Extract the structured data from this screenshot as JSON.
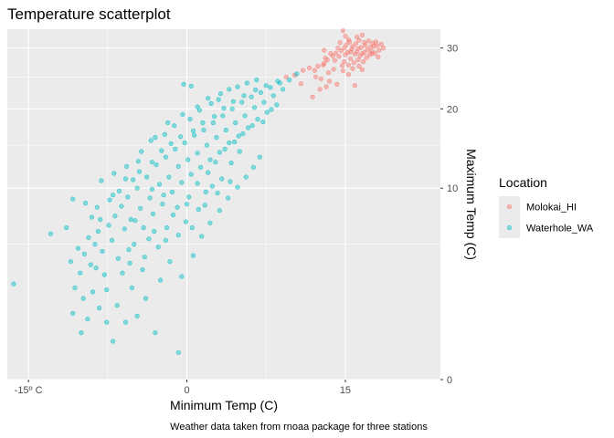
{
  "chart_data": {
    "type": "scatter",
    "title": "Temperature scatterplot",
    "xlabel": "Minimum Temp (C)",
    "ylabel": "Maximum Temp (C)",
    "caption": "Weather data taken from rnoaa package for three stations",
    "x_ticks": [
      {
        "value": -15,
        "label": "-15º C"
      },
      {
        "value": 0,
        "label": "0"
      },
      {
        "value": 15,
        "label": "15"
      }
    ],
    "y_ticks": [
      {
        "value": 0,
        "label": "0"
      },
      {
        "value": 10,
        "label": "10"
      },
      {
        "value": 20,
        "label": "20"
      },
      {
        "value": 30,
        "label": "30"
      }
    ],
    "y_scale": "sqrt",
    "y_axis_position": "right",
    "xlim": [
      -17,
      24
    ],
    "ylim": [
      0,
      33.5
    ],
    "grid": true,
    "legend": {
      "title": "Location",
      "position": "right",
      "entries": [
        {
          "name": "Molokai_HI",
          "color": "#F8766D"
        },
        {
          "name": "Waterhole_WA",
          "color": "#00BFC4"
        }
      ]
    },
    "series": [
      {
        "name": "Molokai_HI",
        "color": "#F8766D",
        "points": [
          [
            9.4,
            25.0
          ],
          [
            10.2,
            25.3
          ],
          [
            11.0,
            26.1
          ],
          [
            12.2,
            25.0
          ],
          [
            11.6,
            26.5
          ],
          [
            12.4,
            26.8
          ],
          [
            13.0,
            27.3
          ],
          [
            13.4,
            25.7
          ],
          [
            13.1,
            28.2
          ],
          [
            13.6,
            29.0
          ],
          [
            13.9,
            26.3
          ],
          [
            14.0,
            27.8
          ],
          [
            14.3,
            30.0
          ],
          [
            14.4,
            28.5
          ],
          [
            14.6,
            29.5
          ],
          [
            14.7,
            26.9
          ],
          [
            14.9,
            27.6
          ],
          [
            15.0,
            28.8
          ],
          [
            15.1,
            30.6
          ],
          [
            15.2,
            29.2
          ],
          [
            15.3,
            27.0
          ],
          [
            15.4,
            31.1
          ],
          [
            15.5,
            28.1
          ],
          [
            15.6,
            29.8
          ],
          [
            15.7,
            30.3
          ],
          [
            15.8,
            27.4
          ],
          [
            15.9,
            28.9
          ],
          [
            16.0,
            30.8
          ],
          [
            16.1,
            29.3
          ],
          [
            16.2,
            27.9
          ],
          [
            16.3,
            31.4
          ],
          [
            16.4,
            28.6
          ],
          [
            16.5,
            30.1
          ],
          [
            16.6,
            29.0
          ],
          [
            16.7,
            27.6
          ],
          [
            16.8,
            31.0
          ],
          [
            16.9,
            30.5
          ],
          [
            17.0,
            28.3
          ],
          [
            17.1,
            29.7
          ],
          [
            17.2,
            31.3
          ],
          [
            17.3,
            28.8
          ],
          [
            17.4,
            30.2
          ],
          [
            17.5,
            29.4
          ],
          [
            17.6,
            30.9
          ],
          [
            17.8,
            29.1
          ],
          [
            18.0,
            30.4
          ],
          [
            18.2,
            29.6
          ],
          [
            18.4,
            30.7
          ],
          [
            18.6,
            30.0
          ],
          [
            12.7,
            24.7
          ],
          [
            13.2,
            23.4
          ],
          [
            13.5,
            24.3
          ],
          [
            11.9,
            21.8
          ],
          [
            12.6,
            23.0
          ],
          [
            14.2,
            23.8
          ],
          [
            14.8,
            26.0
          ],
          [
            15.9,
            23.6
          ],
          [
            10.8,
            23.9
          ],
          [
            15.3,
            25.4
          ],
          [
            16.6,
            26.2
          ],
          [
            15.5,
            29.3
          ],
          [
            16.2,
            29.9
          ],
          [
            16.8,
            29.2
          ],
          [
            17.7,
            30.3
          ],
          [
            14.9,
            30.0
          ],
          [
            14.1,
            29.1
          ],
          [
            13.8,
            28.6
          ],
          [
            13.3,
            27.9
          ],
          [
            12.9,
            27.0
          ],
          [
            12.1,
            26.1
          ],
          [
            13.0,
            29.6
          ],
          [
            14.5,
            31.0
          ],
          [
            15.0,
            32.2
          ],
          [
            14.8,
            33.2
          ],
          [
            15.3,
            31.5
          ],
          [
            16.1,
            32.0
          ],
          [
            16.6,
            32.4
          ],
          [
            17.9,
            31.1
          ],
          [
            17.5,
            29.0
          ],
          [
            18.1,
            28.4
          ],
          [
            16.3,
            26.8
          ],
          [
            15.7,
            26.4
          ]
        ]
      },
      {
        "name": "Waterhole_WA",
        "color": "#00BFC4",
        "points": [
          [
            -16.4,
            2.5
          ],
          [
            -10.8,
            1.2
          ],
          [
            -10.0,
            0.6
          ],
          [
            -9.4,
            1.0
          ],
          [
            -8.9,
            2.1
          ],
          [
            -8.3,
            1.4
          ],
          [
            -7.6,
            0.9
          ],
          [
            -7.0,
            0.4
          ],
          [
            -5.8,
            0.9
          ],
          [
            -4.7,
            1.1
          ],
          [
            -3.0,
            0.6
          ],
          [
            -0.8,
            0.2
          ],
          [
            -10.6,
            2.3
          ],
          [
            -10.1,
            3.1
          ],
          [
            -9.7,
            4.3
          ],
          [
            -9.3,
            5.5
          ],
          [
            -9.1,
            3.6
          ],
          [
            -8.7,
            5.0
          ],
          [
            -8.4,
            6.0
          ],
          [
            -8.0,
            4.5
          ],
          [
            -7.8,
            3.0
          ],
          [
            -7.4,
            6.5
          ],
          [
            -7.1,
            5.3
          ],
          [
            -6.8,
            7.3
          ],
          [
            -6.5,
            4.0
          ],
          [
            -6.2,
            8.2
          ],
          [
            -5.9,
            6.2
          ],
          [
            -5.6,
            9.1
          ],
          [
            -5.3,
            7.0
          ],
          [
            -5.0,
            5.0
          ],
          [
            -4.7,
            10.0
          ],
          [
            -4.4,
            8.0
          ],
          [
            -4.1,
            6.3
          ],
          [
            -3.8,
            11.2
          ],
          [
            -3.5,
            9.0
          ],
          [
            -3.2,
            7.5
          ],
          [
            -2.9,
            12.6
          ],
          [
            -2.6,
            10.4
          ],
          [
            -2.3,
            8.4
          ],
          [
            -2.0,
            13.5
          ],
          [
            -1.7,
            11.2
          ],
          [
            -1.4,
            9.6
          ],
          [
            -1.1,
            14.5
          ],
          [
            -0.8,
            12.4
          ],
          [
            -0.5,
            10.6
          ],
          [
            -0.2,
            15.3
          ],
          [
            0.1,
            13.2
          ],
          [
            0.4,
            11.5
          ],
          [
            0.7,
            16.3
          ],
          [
            1.0,
            14.0
          ],
          [
            1.3,
            12.3
          ],
          [
            1.6,
            17.0
          ],
          [
            1.9,
            15.0
          ],
          [
            2.2,
            13.2
          ],
          [
            2.5,
            18.0
          ],
          [
            2.8,
            16.0
          ],
          [
            3.1,
            14.1
          ],
          [
            3.4,
            19.0
          ],
          [
            3.7,
            17.0
          ],
          [
            4.0,
            15.3
          ],
          [
            4.3,
            20.0
          ],
          [
            4.6,
            18.0
          ],
          [
            4.9,
            16.2
          ],
          [
            5.2,
            21.0
          ],
          [
            5.5,
            19.0
          ],
          [
            5.8,
            17.3
          ],
          [
            6.1,
            21.8
          ],
          [
            6.4,
            20.2
          ],
          [
            6.7,
            18.5
          ],
          [
            7.0,
            22.5
          ],
          [
            7.3,
            21.0
          ],
          [
            7.6,
            19.5
          ],
          [
            7.9,
            23.3
          ],
          [
            8.2,
            22.0
          ],
          [
            8.5,
            20.6
          ],
          [
            8.8,
            24.0
          ],
          [
            9.1,
            23.0
          ],
          [
            9.7,
            24.5
          ],
          [
            10.4,
            25.5
          ],
          [
            -0.3,
            23.8
          ],
          [
            0.4,
            23.5
          ],
          [
            -12.9,
            5.8
          ],
          [
            -11.4,
            6.3
          ],
          [
            -10.8,
            8.9
          ],
          [
            -9.6,
            8.5
          ],
          [
            -8.1,
            10.8
          ],
          [
            -6.9,
            11.6
          ],
          [
            -5.7,
            12.4
          ],
          [
            -4.3,
            14.2
          ],
          [
            -3.4,
            15.6
          ],
          [
            -2.1,
            16.4
          ],
          [
            -1.2,
            17.6
          ],
          [
            0.3,
            18.5
          ],
          [
            1.2,
            19.8
          ],
          [
            2.3,
            20.8
          ],
          [
            3.0,
            21.4
          ],
          [
            -0.5,
            2.9
          ],
          [
            0.6,
            4.2
          ],
          [
            1.4,
            5.6
          ],
          [
            2.2,
            6.7
          ],
          [
            3.1,
            7.8
          ],
          [
            3.9,
            9.0
          ],
          [
            4.8,
            10.1
          ],
          [
            5.6,
            11.2
          ],
          [
            6.3,
            12.3
          ],
          [
            6.9,
            13.5
          ],
          [
            -3.9,
            1.8
          ],
          [
            -2.5,
            2.7
          ],
          [
            -1.6,
            3.8
          ],
          [
            -0.1,
            6.8
          ],
          [
            1.8,
            9.6
          ],
          [
            -7.6,
            2.2
          ],
          [
            -6.1,
            3.1
          ],
          [
            -5.2,
            2.3
          ],
          [
            -4.2,
            3.3
          ],
          [
            -9.8,
            1.8
          ],
          [
            -8.6,
            3.4
          ],
          [
            -6.6,
            1.5
          ],
          [
            -5.4,
            3.7
          ],
          [
            -4.9,
            6.9
          ],
          [
            -3.6,
            5.4
          ],
          [
            -2.7,
            4.8
          ],
          [
            -1.9,
            6.3
          ],
          [
            -0.9,
            8.1
          ],
          [
            0.2,
            9.1
          ],
          [
            1.0,
            10.5
          ],
          [
            2.0,
            11.7
          ],
          [
            2.7,
            12.9
          ],
          [
            3.6,
            14.5
          ],
          [
            4.5,
            15.4
          ],
          [
            5.3,
            16.5
          ],
          [
            6.2,
            17.6
          ],
          [
            7.2,
            18.1
          ],
          [
            8.0,
            19.9
          ],
          [
            -11.0,
            3.8
          ],
          [
            -10.3,
            4.7
          ],
          [
            -9.0,
            7.2
          ],
          [
            -8.5,
            8.1
          ],
          [
            -7.3,
            8.8
          ],
          [
            -6.4,
            9.7
          ],
          [
            -5.1,
            10.9
          ],
          [
            -4.5,
            11.8
          ],
          [
            -3.3,
            12.9
          ],
          [
            -2.4,
            14.3
          ],
          [
            -1.5,
            15.2
          ],
          [
            -0.6,
            16.1
          ],
          [
            0.6,
            16.9
          ],
          [
            1.5,
            18.0
          ],
          [
            2.6,
            18.9
          ],
          [
            3.5,
            20.1
          ],
          [
            4.4,
            21.1
          ],
          [
            5.4,
            22.0
          ],
          [
            6.5,
            22.9
          ],
          [
            7.5,
            23.6
          ],
          [
            8.6,
            24.3
          ],
          [
            -3.3,
            9.9
          ],
          [
            -2.2,
            9.3
          ],
          [
            -1.3,
            7.4
          ],
          [
            0.0,
            8.4
          ],
          [
            1.1,
            7.9
          ],
          [
            2.4,
            10.2
          ],
          [
            3.3,
            11.0
          ],
          [
            4.2,
            12.8
          ],
          [
            5.0,
            14.2
          ],
          [
            -5.5,
            4.6
          ],
          [
            -4.0,
            4.1
          ],
          [
            -3.1,
            6.0
          ],
          [
            -2.0,
            5.3
          ],
          [
            -0.8,
            5.7
          ],
          [
            0.5,
            6.3
          ],
          [
            1.7,
            8.3
          ],
          [
            2.9,
            9.5
          ],
          [
            4.1,
            10.7
          ],
          [
            -8.2,
            7.0
          ],
          [
            -7.0,
            9.3
          ],
          [
            -5.8,
            11.0
          ],
          [
            -4.6,
            13.0
          ],
          [
            -3.0,
            16.0
          ],
          [
            -1.8,
            18.0
          ],
          [
            -0.4,
            19.2
          ],
          [
            1.0,
            20.3
          ],
          [
            2.0,
            21.6
          ],
          [
            3.2,
            22.3
          ],
          [
            4.0,
            23.0
          ],
          [
            4.8,
            23.4
          ],
          [
            5.7,
            24.0
          ],
          [
            6.6,
            24.5
          ]
        ]
      }
    ]
  }
}
